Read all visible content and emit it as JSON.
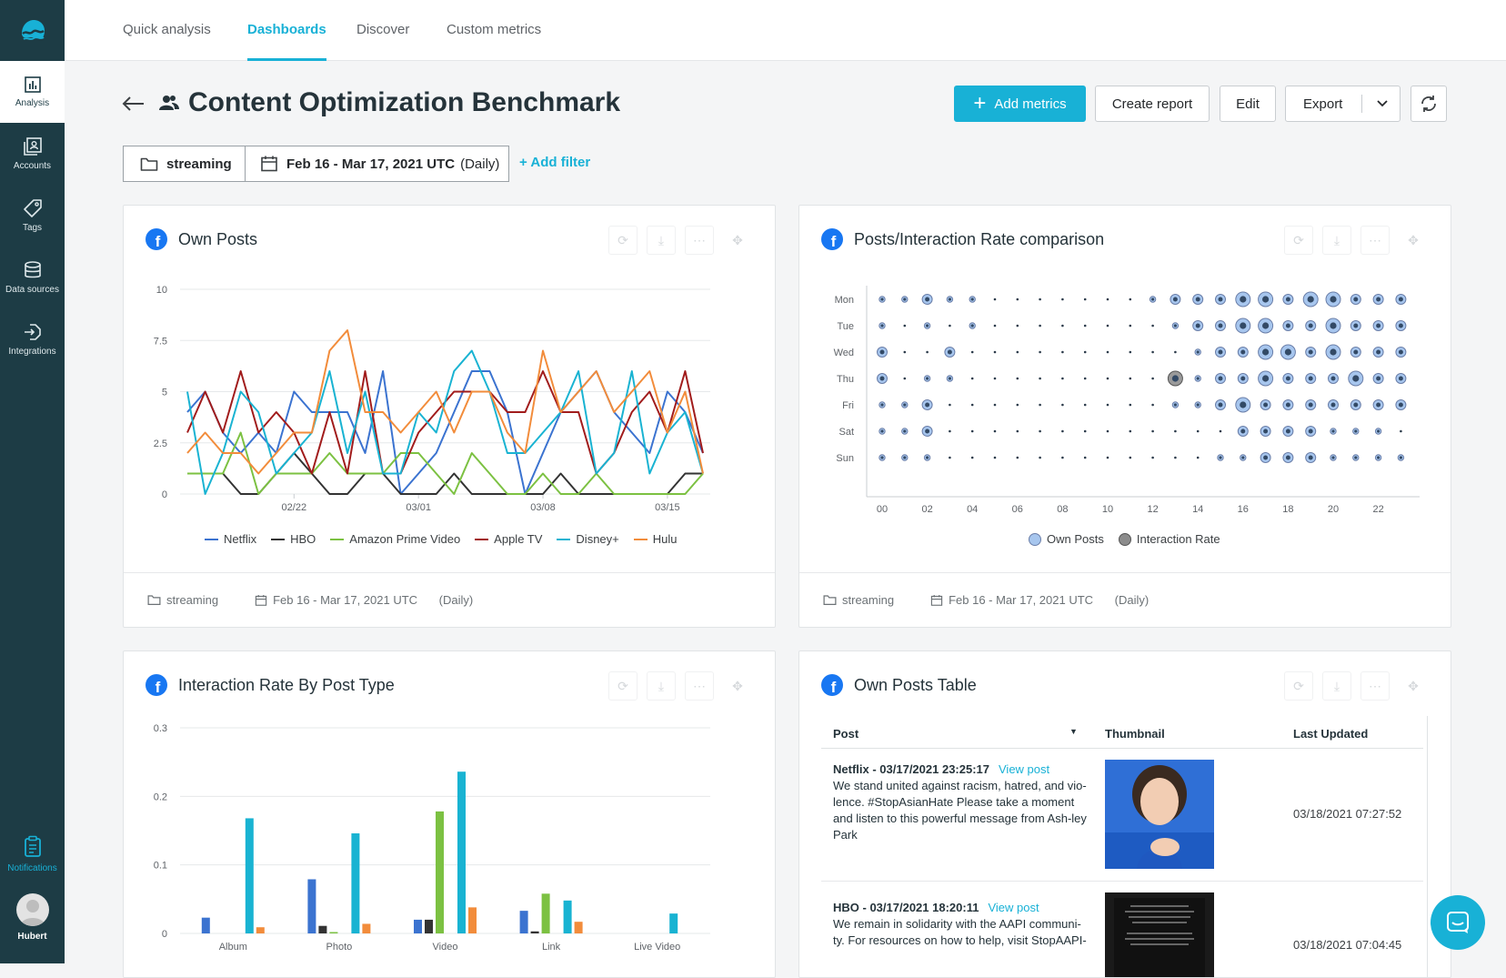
{
  "sidebar": {
    "items": [
      {
        "label": "Analysis",
        "icon": "chart-icon",
        "active": true
      },
      {
        "label": "Accounts",
        "icon": "accounts-icon"
      },
      {
        "label": "Tags",
        "icon": "tag-icon"
      },
      {
        "label": "Data sources",
        "icon": "database-icon"
      },
      {
        "label": "Integrations",
        "icon": "integration-icon"
      }
    ],
    "notifications": "Notifications",
    "user": "Hubert"
  },
  "tabs": [
    "Quick analysis",
    "Dashboards",
    "Discover",
    "Custom metrics"
  ],
  "header": {
    "title": "Content Optimization Benchmark",
    "add_metrics": "Add metrics",
    "create_report": "Create report",
    "edit": "Edit",
    "export": "Export"
  },
  "filters": {
    "folder": "streaming",
    "date": "Feb 16 - Mar 17, 2021 UTC",
    "granularity": "(Daily)",
    "add_filter": "+ Add filter"
  },
  "colors": {
    "accent": "#18b1d6",
    "sidebar": "#1d3c45",
    "Netflix": "#3b73d0",
    "HBO": "#333333",
    "Amazon Prime Video": "#7cc142",
    "Apple TV": "#a11c1c",
    "Disney+": "#19b3d2",
    "Hulu": "#f28c3b"
  },
  "cards": {
    "own_posts": {
      "title": "Own Posts",
      "foot_folder": "streaming",
      "foot_date": "Feb 16 - Mar 17, 2021 UTC",
      "foot_gran": "(Daily)"
    },
    "posts_rate": {
      "title": "Posts/Interaction Rate comparison",
      "foot_folder": "streaming",
      "foot_date": "Feb 16 - Mar 17, 2021 UTC",
      "foot_gran": "(Daily)",
      "legend": [
        "Own Posts",
        "Interaction Rate"
      ]
    },
    "interaction_type": {
      "title": "Interaction Rate By Post Type"
    },
    "posts_table": {
      "title": "Own Posts Table",
      "columns": [
        "Post",
        "Thumbnail",
        "Last Updated"
      ],
      "rows": [
        {
          "head": "Netflix - 03/17/2021 23:25:17",
          "view": "View post",
          "text": "We stand united against racism, hatred, and vio-lence. #StopAsianHate Please take a moment and listen to this powerful message from Ash-ley Park",
          "updated": "03/18/2021 07:27:52"
        },
        {
          "head": "HBO - 03/17/2021 18:20:11",
          "view": "View post",
          "text": "We remain in solidarity with the AAPI communi-ty. For resources on how to help, visit StopAAPI-",
          "updated": "03/18/2021 07:04:45"
        }
      ]
    }
  },
  "chart_data": [
    {
      "type": "line",
      "title": "Own Posts",
      "x": [
        "02/16",
        "02/17",
        "02/18",
        "02/19",
        "02/20",
        "02/21",
        "02/22",
        "02/23",
        "02/24",
        "02/25",
        "02/26",
        "02/27",
        "02/28",
        "03/01",
        "03/02",
        "03/03",
        "03/04",
        "03/05",
        "03/06",
        "03/07",
        "03/08",
        "03/09",
        "03/10",
        "03/11",
        "03/12",
        "03/13",
        "03/14",
        "03/15",
        "03/16",
        "03/17"
      ],
      "x_ticks": [
        "02/22",
        "03/01",
        "03/08",
        "03/15"
      ],
      "ylim": [
        0,
        10
      ],
      "y_ticks": [
        0,
        2.5,
        5,
        7.5,
        10
      ],
      "series": [
        {
          "name": "Netflix",
          "values": [
            4,
            5,
            3,
            2,
            3,
            2,
            5,
            4,
            4,
            4,
            2,
            6,
            0,
            1,
            2,
            4,
            6,
            6,
            4,
            0,
            2,
            4,
            5,
            6,
            4,
            3,
            2,
            5,
            4,
            2
          ]
        },
        {
          "name": "HBO",
          "values": [
            1,
            1,
            1,
            0,
            0,
            1,
            2,
            1,
            0,
            0,
            1,
            1,
            0,
            0,
            0,
            1,
            0,
            0,
            0,
            0,
            0,
            1,
            0,
            0,
            0,
            0,
            0,
            0,
            1,
            1
          ]
        },
        {
          "name": "Amazon Prime Video",
          "values": [
            1,
            1,
            1,
            3,
            0,
            1,
            1,
            1,
            2,
            1,
            1,
            1,
            2,
            2,
            1,
            0,
            2,
            1,
            0,
            0,
            1,
            0,
            0,
            1,
            0,
            0,
            0,
            0,
            0,
            1
          ]
        },
        {
          "name": "Apple TV",
          "values": [
            3,
            5,
            3,
            6,
            3,
            4,
            3,
            1,
            4,
            1,
            6,
            1,
            1,
            3,
            4,
            5,
            5,
            5,
            4,
            4,
            6,
            4,
            4,
            1,
            2,
            4,
            5,
            3,
            6,
            2
          ]
        },
        {
          "name": "Disney+",
          "values": [
            5,
            0,
            2,
            5,
            4,
            1,
            2,
            3,
            6,
            2,
            5,
            1,
            1,
            4,
            3,
            6,
            7,
            5,
            2,
            2,
            3,
            4,
            6,
            1,
            2,
            6,
            1,
            3,
            4,
            1
          ]
        },
        {
          "name": "Hulu",
          "values": [
            2,
            3,
            2,
            2,
            1,
            2,
            3,
            3,
            7,
            8,
            4,
            4,
            3,
            4,
            5,
            3,
            5,
            5,
            3,
            2,
            7,
            4,
            5,
            6,
            4,
            5,
            6,
            3,
            5,
            1
          ]
        }
      ],
      "legend": [
        "Netflix",
        "HBO",
        "Amazon Prime Video",
        "Apple TV",
        "Disney+",
        "Hulu"
      ]
    },
    {
      "type": "scatter",
      "title": "Posts/Interaction Rate comparison",
      "y_categories": [
        "Mon",
        "Tue",
        "Wed",
        "Thu",
        "Fri",
        "Sat",
        "Sun"
      ],
      "x_ticks": [
        "00",
        "02",
        "04",
        "06",
        "08",
        "10",
        "12",
        "14",
        "16",
        "18",
        "20",
        "22"
      ],
      "own_posts_size": [
        [
          2,
          2,
          3,
          2,
          2,
          1,
          1,
          1,
          1,
          1,
          1,
          1,
          2,
          3,
          3,
          3,
          4,
          4,
          3,
          4,
          4,
          3,
          3,
          3
        ],
        [
          2,
          1,
          2,
          1,
          2,
          1,
          1,
          1,
          1,
          1,
          1,
          1,
          1,
          2,
          3,
          3,
          4,
          4,
          3,
          3,
          4,
          3,
          3,
          3
        ],
        [
          3,
          1,
          1,
          3,
          1,
          1,
          1,
          1,
          1,
          1,
          1,
          1,
          1,
          1,
          2,
          3,
          3,
          4,
          4,
          3,
          4,
          3,
          3,
          3
        ],
        [
          3,
          1,
          2,
          2,
          1,
          1,
          1,
          1,
          1,
          1,
          1,
          1,
          1,
          4,
          2,
          3,
          3,
          4,
          3,
          3,
          3,
          4,
          3,
          3
        ],
        [
          2,
          2,
          3,
          1,
          1,
          1,
          1,
          1,
          1,
          1,
          1,
          1,
          1,
          2,
          2,
          3,
          4,
          3,
          3,
          3,
          3,
          3,
          3,
          3
        ],
        [
          2,
          2,
          3,
          1,
          1,
          1,
          1,
          1,
          1,
          1,
          1,
          1,
          1,
          1,
          1,
          1,
          3,
          3,
          3,
          3,
          2,
          2,
          2,
          1
        ],
        [
          2,
          2,
          2,
          1,
          1,
          1,
          1,
          1,
          1,
          1,
          1,
          1,
          1,
          1,
          1,
          2,
          2,
          3,
          3,
          3,
          2,
          2,
          2,
          2
        ]
      ],
      "legend": [
        "Own Posts",
        "Interaction Rate"
      ]
    },
    {
      "type": "bar",
      "title": "Interaction Rate By Post Type",
      "categories": [
        "Album",
        "Photo",
        "Video",
        "Link",
        "Live Video"
      ],
      "ylim": [
        0,
        0.3
      ],
      "y_ticks": [
        0,
        0.1,
        0.2,
        0.3
      ],
      "series": [
        {
          "name": "Netflix",
          "values": [
            0.023,
            0.079,
            0.02,
            0.033,
            0
          ]
        },
        {
          "name": "HBO",
          "values": [
            0,
            0.011,
            0.02,
            0.003,
            0
          ]
        },
        {
          "name": "Amazon Prime Video",
          "values": [
            0,
            0.002,
            0.178,
            0.058,
            0
          ]
        },
        {
          "name": "Apple TV",
          "values": [
            0,
            0,
            0,
            0,
            0
          ]
        },
        {
          "name": "Disney+",
          "values": [
            0.168,
            0.146,
            0.236,
            0.048,
            0.029
          ]
        },
        {
          "name": "Hulu",
          "values": [
            0.009,
            0.014,
            0.038,
            0.017,
            0
          ]
        }
      ]
    }
  ]
}
